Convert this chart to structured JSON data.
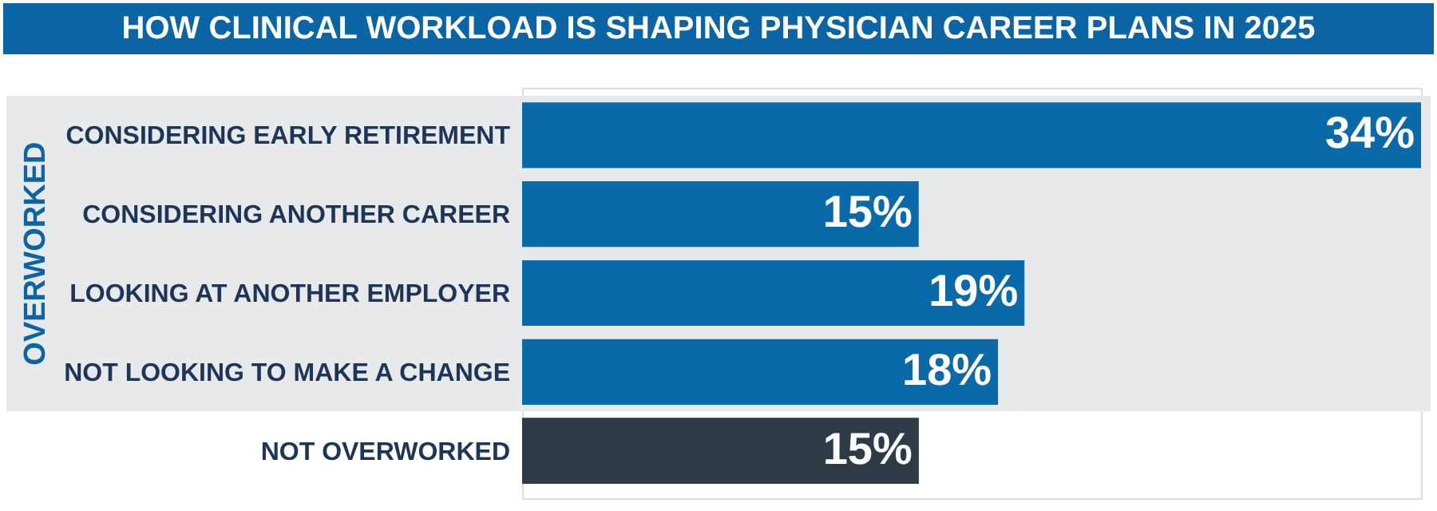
{
  "chart_data": {
    "type": "bar",
    "orientation": "horizontal",
    "title": "HOW CLINICAL WORKLOAD IS SHAPING PHYSICIAN CAREER PLANS IN 2025",
    "categories": [
      "CONSIDERING EARLY RETIREMENT",
      "CONSIDERING ANOTHER CAREER",
      "LOOKING AT ANOTHER EMPLOYER",
      "NOT LOOKING TO MAKE A CHANGE",
      "NOT OVERWORKED"
    ],
    "values": [
      34,
      15,
      19,
      18,
      15
    ],
    "value_labels": [
      "34%",
      "15%",
      "19%",
      "18%",
      "15%"
    ],
    "colors": [
      "#0a69a8",
      "#0a69a8",
      "#0a69a8",
      "#0a69a8",
      "#2e3a45"
    ],
    "bands": [
      {
        "axis": "y",
        "from": "CONSIDERING EARLY RETIREMENT",
        "to": "NOT LOOKING TO MAKE A CHANGE",
        "label": "OVERWORKED",
        "color": "#e8e9eb"
      }
    ]
  }
}
